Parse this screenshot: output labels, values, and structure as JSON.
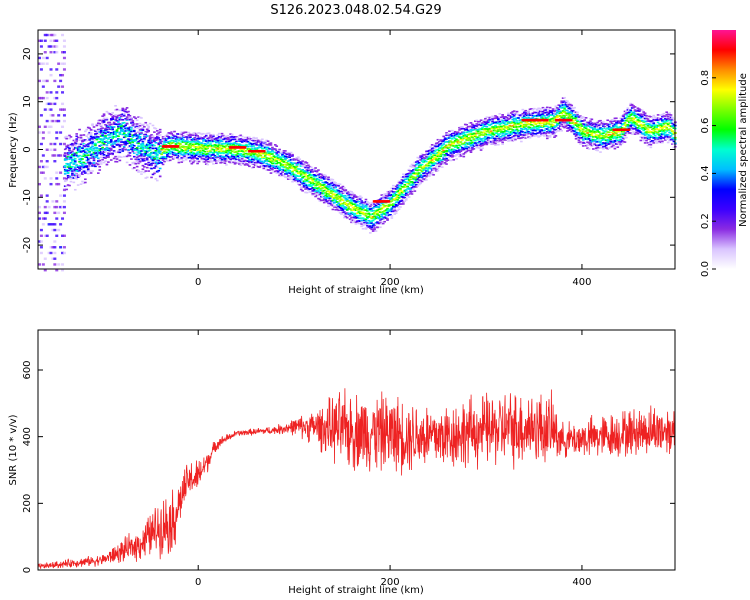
{
  "title": "S126.2023.048.02.54.G29",
  "colors": {
    "snr_line": "#ee2222",
    "axis": "#000000",
    "colormap": [
      "#ffffff",
      "#d9c4ff",
      "#8a2be2",
      "#3b00ff",
      "#0000ff",
      "#00bfff",
      "#00ffd0",
      "#00ff00",
      "#7cff00",
      "#ffff00",
      "#ff8c00",
      "#ff0000",
      "#ff1493"
    ]
  },
  "chart_data": [
    {
      "type": "heatmap",
      "title": "",
      "xlabel": "Height of straight line (km)",
      "ylabel": "Frequency (Hz)",
      "xlim": [
        -167,
        497
      ],
      "ylim": [
        -25,
        25
      ],
      "xticks": [
        0,
        200,
        400
      ],
      "yticks": [
        -20,
        -10,
        0,
        10,
        20
      ],
      "colorbar": {
        "label": "Normalized spectral amplitude",
        "range": [
          0,
          1
        ],
        "ticks": [
          "0.0",
          "0.2",
          "0.4",
          "0.6",
          "0.8"
        ]
      },
      "ridge": {
        "x": [
          -140,
          -120,
          -100,
          -80,
          -60,
          -45,
          -30,
          0,
          40,
          70,
          100,
          130,
          160,
          180,
          200,
          230,
          260,
          300,
          340,
          370,
          380,
          400,
          420,
          440,
          450,
          470,
          490,
          497
        ],
        "y": [
          -3,
          -1,
          2,
          4,
          1,
          -1,
          1,
          0.5,
          0.3,
          -1,
          -4,
          -8,
          -12,
          -14,
          -11,
          -4,
          1,
          4,
          5.5,
          6,
          8,
          4,
          3,
          4,
          7,
          4,
          5,
          3
        ]
      },
      "hotspots": [
        [
          -30,
          0.5
        ],
        [
          40,
          0.3
        ],
        [
          60,
          -0.5
        ],
        [
          190,
          -11
        ],
        [
          345,
          6
        ],
        [
          355,
          6
        ],
        [
          380,
          6
        ],
        [
          440,
          4
        ]
      ]
    },
    {
      "type": "line",
      "title": "",
      "xlabel": "Height of straight line (km)",
      "ylabel": "SNR (10 * v/v)",
      "xlim": [
        -167,
        497
      ],
      "ylim": [
        0,
        720
      ],
      "xticks": [
        0,
        200,
        400
      ],
      "yticks": [
        0,
        200,
        400,
        600
      ],
      "series": [
        {
          "envelope": {
            "x": [
              -167,
              -100,
              -60,
              -40,
              -25,
              -20,
              -10,
              0,
              10,
              20,
              40,
              80,
              100,
              120,
              150,
              200,
              250,
              300,
              350,
              370,
              380,
              420,
              470,
              497
            ],
            "mean": [
              10,
              30,
              80,
              130,
              150,
              200,
              270,
              280,
              330,
              380,
              410,
              420,
              430,
              430,
              420,
              410,
              400,
              420,
              430,
              420,
              390,
              400,
              420,
              420
            ],
            "amp": [
              10,
              20,
              60,
              100,
              120,
              80,
              70,
              60,
              40,
              20,
              10,
              15,
              30,
              60,
              140,
              140,
              120,
              130,
              140,
              120,
              60,
              80,
              90,
              90
            ]
          }
        }
      ]
    }
  ]
}
